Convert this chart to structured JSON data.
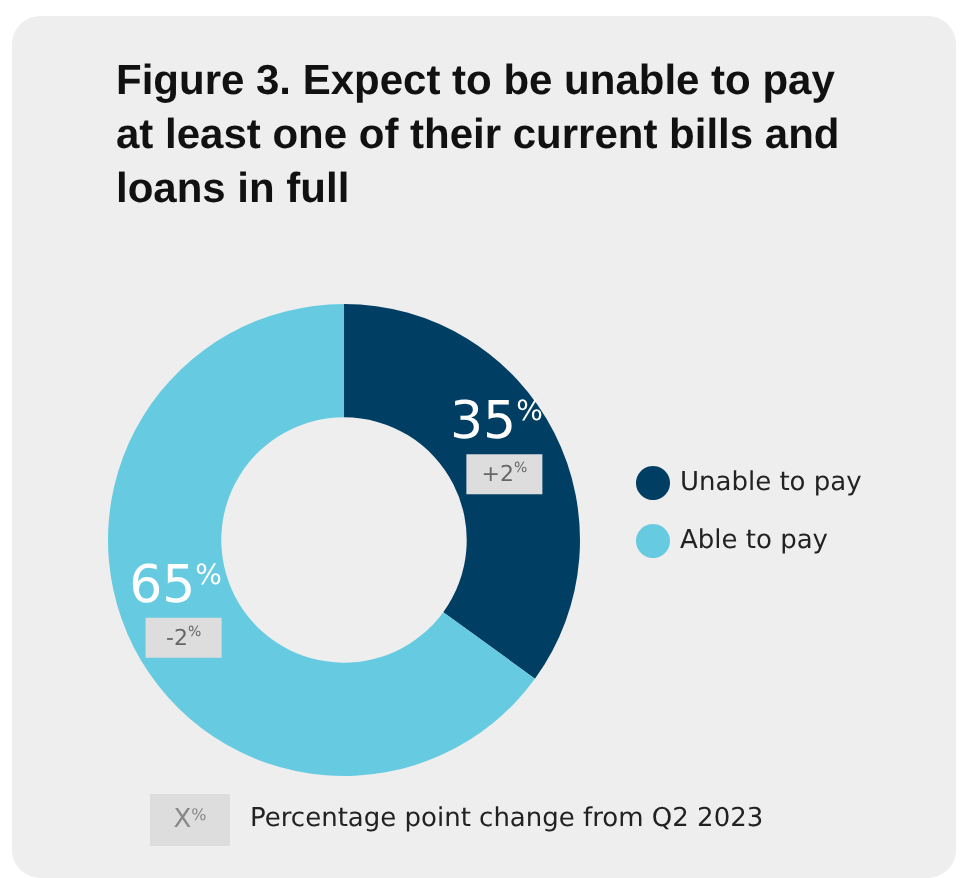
{
  "chart_data": {
    "type": "donut",
    "title": "Figure 3. Expect to be unable to pay at least one of their current bills and loans in full",
    "categories": [
      "Unable to pay",
      "Able to pay"
    ],
    "values": [
      35,
      65
    ],
    "colors": [
      "#003f63",
      "#66cbe0"
    ],
    "value_labels": [
      "35$^{%}$",
      "65$^{%}$"
    ],
    "legend": "right",
    "annotations": [
      {
        "text": "+2$^{%}$",
        "x": "Unable to pay"
      },
      {
        "text": "-2$^{%}$",
        "x": "Able to pay"
      },
      "X$^{%}$",
      "Percentage point change from Q2 2023"
    ]
  }
}
